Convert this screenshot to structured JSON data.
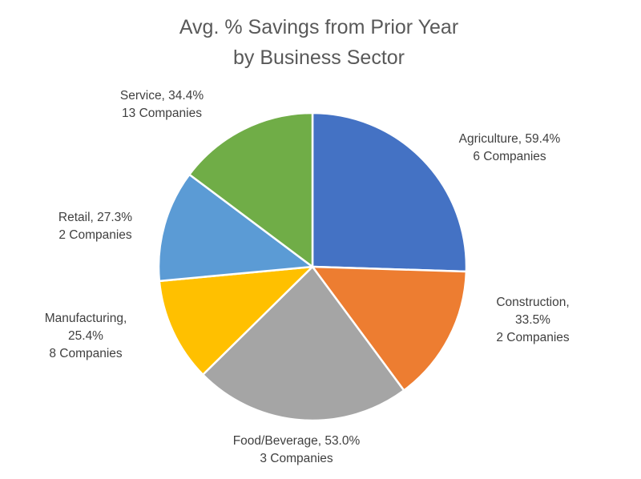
{
  "chart_data": {
    "type": "pie",
    "title": "Avg. % Savings from Prior Year by Business Sector",
    "title_lines": [
      "Avg. % Savings from Prior Year",
      "by Business Sector"
    ],
    "slices": [
      {
        "category": "Agriculture",
        "value": 59.4,
        "companies": 6,
        "color": "#4472C4",
        "label_lines": [
          "Agriculture, 59.4%",
          "6 Companies"
        ]
      },
      {
        "category": "Construction",
        "value": 33.5,
        "companies": 2,
        "color": "#ED7D31",
        "label_lines": [
          "Construction,",
          "33.5%",
          "2 Companies"
        ]
      },
      {
        "category": "Food/Beverage",
        "value": 53.0,
        "companies": 3,
        "color": "#A5A5A5",
        "label_lines": [
          "Food/Beverage, 53.0%",
          "3 Companies"
        ]
      },
      {
        "category": "Manufacturing",
        "value": 25.4,
        "companies": 8,
        "color": "#FFC000",
        "label_lines": [
          "Manufacturing,",
          "25.4%",
          "8 Companies"
        ]
      },
      {
        "category": "Retail",
        "value": 27.3,
        "companies": 2,
        "color": "#5B9BD5",
        "label_lines": [
          "Retail, 27.3%",
          "2 Companies"
        ]
      },
      {
        "category": "Service",
        "value": 34.4,
        "companies": 13,
        "color": "#70AD47",
        "label_lines": [
          "Service, 34.4%",
          "13 Companies"
        ]
      }
    ],
    "start_angle": "12 o'clock",
    "direction": "clockwise",
    "legend": "none",
    "data_labels": "outside"
  }
}
